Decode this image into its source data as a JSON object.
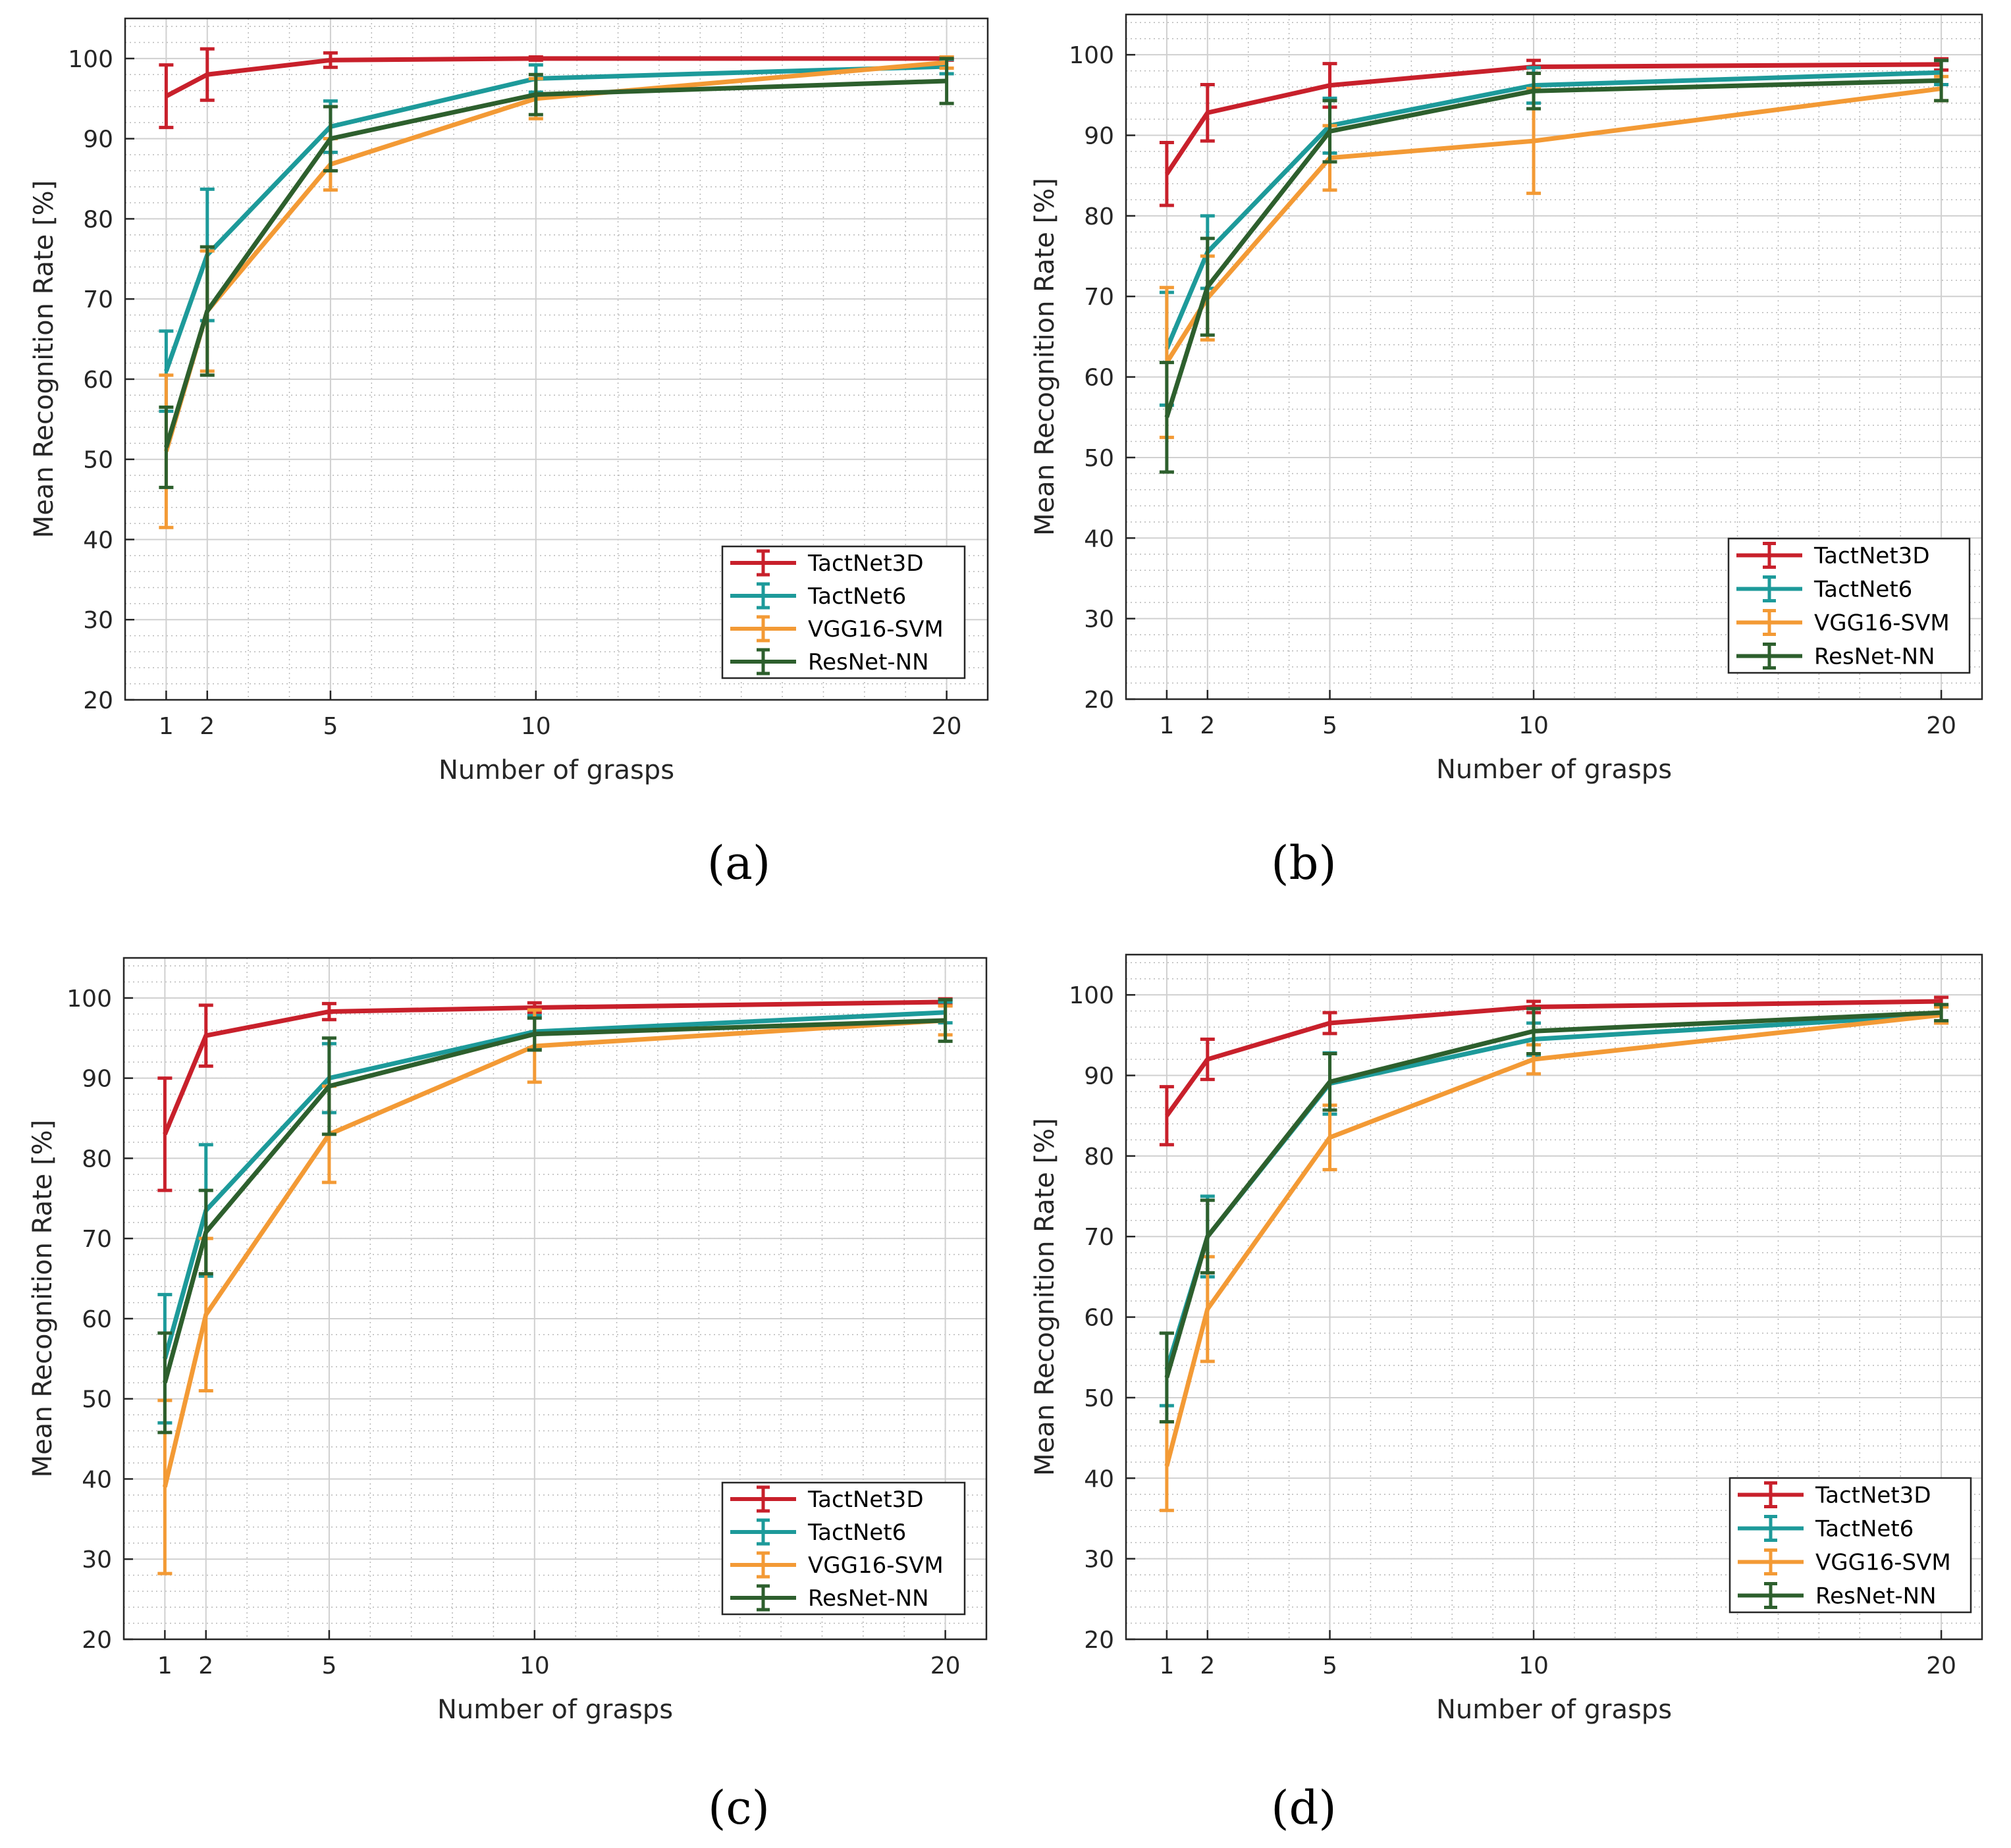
{
  "colors": {
    "TactNet3D": "#c8202b",
    "TactNet6": "#1d9a9a",
    "VGG16-SVM": "#f39a35",
    "ResNet-NN": "#2d5f2d",
    "grid_major": "#d0d0d0",
    "grid_minor": "#b8b8b8",
    "axis": "#262626"
  },
  "chart_data": [
    {
      "type": "line",
      "panel_label": "(a)",
      "xlabel": "Number of grasps",
      "ylabel": "Mean Recognition Rate [%]",
      "xlim": [
        0,
        21
      ],
      "ylim": [
        20,
        105
      ],
      "x": [
        1,
        2,
        5,
        10,
        20
      ],
      "xticks": [
        "1",
        "2",
        "5",
        "10",
        "20"
      ],
      "yticks": [
        "20",
        "30",
        "40",
        "50",
        "60",
        "70",
        "80",
        "90",
        "100"
      ],
      "legend_position": "lower-right",
      "grid": true,
      "series": [
        {
          "name": "TactNet3D",
          "values": [
            95.3,
            98.0,
            99.8,
            100.0,
            100.0
          ],
          "err": [
            3.9,
            3.2,
            0.9,
            0.2,
            0.2
          ]
        },
        {
          "name": "TactNet6",
          "values": [
            61.0,
            75.5,
            91.5,
            97.5,
            99.0
          ],
          "err": [
            5.0,
            8.2,
            3.2,
            1.7,
            0.9
          ]
        },
        {
          "name": "VGG16-SVM",
          "values": [
            51.0,
            68.5,
            86.8,
            95.0,
            99.5
          ],
          "err": [
            9.5,
            7.5,
            3.2,
            2.5,
            0.7
          ]
        },
        {
          "name": "ResNet-NN",
          "values": [
            51.5,
            68.5,
            90.0,
            95.5,
            97.2
          ],
          "err": [
            5.0,
            8.0,
            4.0,
            2.5,
            2.8
          ]
        }
      ]
    },
    {
      "type": "line",
      "panel_label": "(b)",
      "xlabel": "Number of grasps",
      "ylabel": "Mean Recognition Rate [%]",
      "xlim": [
        0,
        21
      ],
      "ylim": [
        20,
        105
      ],
      "x": [
        1,
        2,
        5,
        10,
        20
      ],
      "xticks": [
        "1",
        "2",
        "5",
        "10",
        "20"
      ],
      "yticks": [
        "20",
        "30",
        "40",
        "50",
        "60",
        "70",
        "80",
        "90",
        "100"
      ],
      "legend_position": "lower-right",
      "grid": true,
      "series": [
        {
          "name": "TactNet3D",
          "values": [
            85.2,
            92.8,
            96.2,
            98.5,
            98.8
          ],
          "err": [
            3.9,
            3.5,
            2.7,
            0.8,
            0.7
          ]
        },
        {
          "name": "TactNet6",
          "values": [
            63.5,
            75.5,
            91.2,
            96.2,
            97.8
          ],
          "err": [
            7.0,
            4.5,
            3.4,
            2.2,
            1.5
          ]
        },
        {
          "name": "VGG16-SVM",
          "values": [
            61.8,
            69.8,
            87.2,
            89.3,
            95.8
          ],
          "err": [
            9.3,
            5.2,
            4.0,
            6.5,
            1.5
          ]
        },
        {
          "name": "ResNet-NN",
          "values": [
            55.0,
            71.2,
            90.5,
            95.5,
            96.8
          ],
          "err": [
            6.8,
            6.0,
            3.8,
            2.2,
            2.5
          ]
        }
      ]
    },
    {
      "type": "line",
      "panel_label": "(c)",
      "xlabel": "Number of grasps",
      "ylabel": "Mean Recognition Rate [%]",
      "xlim": [
        0,
        21
      ],
      "ylim": [
        20,
        105
      ],
      "x": [
        1,
        2,
        5,
        10,
        20
      ],
      "xticks": [
        "1",
        "2",
        "5",
        "10",
        "20"
      ],
      "yticks": [
        "20",
        "30",
        "40",
        "50",
        "60",
        "70",
        "80",
        "90",
        "100"
      ],
      "legend_position": "lower-right",
      "grid": true,
      "series": [
        {
          "name": "TactNet3D",
          "values": [
            83.0,
            95.3,
            98.3,
            98.8,
            99.5
          ],
          "err": [
            7.0,
            3.8,
            1.0,
            0.6,
            0.4
          ]
        },
        {
          "name": "TactNet6",
          "values": [
            55.0,
            73.5,
            90.0,
            95.8,
            98.2
          ],
          "err": [
            8.0,
            8.2,
            4.3,
            2.0,
            1.3
          ]
        },
        {
          "name": "VGG16-SVM",
          "values": [
            39.0,
            60.5,
            83.0,
            94.0,
            97.2
          ],
          "err": [
            10.8,
            9.5,
            6.0,
            4.5,
            1.8
          ]
        },
        {
          "name": "ResNet-NN",
          "values": [
            52.0,
            70.8,
            89.0,
            95.5,
            97.2
          ],
          "err": [
            6.2,
            5.2,
            6.0,
            2.0,
            2.6
          ]
        }
      ]
    },
    {
      "type": "line",
      "panel_label": "(d)",
      "xlabel": "Number of grasps",
      "ylabel": "Mean Recognition Rate [%]",
      "xlim": [
        0,
        21
      ],
      "ylim": [
        20,
        105
      ],
      "x": [
        1,
        2,
        5,
        10,
        20
      ],
      "xticks": [
        "1",
        "2",
        "5",
        "10",
        "20"
      ],
      "yticks": [
        "20",
        "30",
        "40",
        "50",
        "60",
        "70",
        "80",
        "90",
        "100"
      ],
      "legend_position": "lower-right",
      "grid": true,
      "series": [
        {
          "name": "TactNet3D",
          "values": [
            85.0,
            92.0,
            96.5,
            98.5,
            99.2
          ],
          "err": [
            3.6,
            2.5,
            1.3,
            0.7,
            0.5
          ]
        },
        {
          "name": "TactNet6",
          "values": [
            53.5,
            70.0,
            89.0,
            94.5,
            97.5
          ],
          "err": [
            4.5,
            5.0,
            3.8,
            2.0,
            1.0
          ]
        },
        {
          "name": "VGG16-SVM",
          "values": [
            41.5,
            61.0,
            82.3,
            92.0,
            97.5
          ],
          "err": [
            5.5,
            6.5,
            4.0,
            1.8,
            1.0
          ]
        },
        {
          "name": "ResNet-NN",
          "values": [
            52.5,
            70.0,
            89.2,
            95.5,
            97.8
          ],
          "err": [
            5.5,
            4.5,
            3.5,
            2.8,
            1.0
          ]
        }
      ]
    }
  ]
}
